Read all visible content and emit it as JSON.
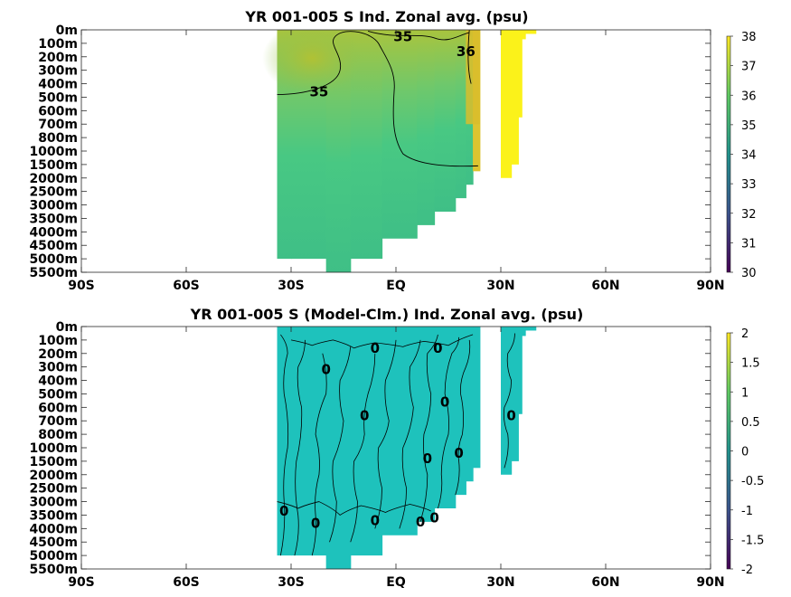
{
  "colormap": [
    "#440154",
    "#3b528b",
    "#21918c",
    "#5ec962",
    "#fde725"
  ],
  "chart_data": [
    {
      "type": "heatmap",
      "title": "YR 001-005 S Ind. Zonal avg. (psu)",
      "xlabel": "",
      "ylabel": "",
      "x_tick_labels": [
        "90S",
        "60S",
        "30S",
        "EQ",
        "30N",
        "60N",
        "90N"
      ],
      "x_ticks": [
        -90,
        -60,
        -30,
        0,
        30,
        60,
        90
      ],
      "xlim": [
        -90,
        90
      ],
      "y_tick_labels": [
        "0m",
        "100m",
        "200m",
        "300m",
        "400m",
        "500m",
        "600m",
        "700m",
        "800m",
        "1000m",
        "1500m",
        "2000m",
        "2500m",
        "3000m",
        "3500m",
        "4000m",
        "4500m",
        "5000m",
        "5500m"
      ],
      "colorbar": {
        "min": 30,
        "max": 38,
        "ticks": [
          30,
          31,
          32,
          33,
          34,
          35,
          36,
          37,
          38
        ]
      },
      "contour_labels": [
        {
          "text": "35",
          "lat": 2,
          "level": 0.5
        },
        {
          "text": "35",
          "lat": -22,
          "level": 4.6
        },
        {
          "text": "36",
          "lat": 20,
          "level": 1.6
        }
      ],
      "columns": [
        {
          "lat_min": -34,
          "lat_max": -30,
          "max_level": 17
        },
        {
          "lat_min": -30,
          "lat_max": -20,
          "max_level": 17
        },
        {
          "lat_min": -20,
          "lat_max": -13,
          "max_level": 18
        },
        {
          "lat_min": -13,
          "lat_max": -4,
          "max_level": 17
        },
        {
          "lat_min": -4,
          "lat_max": 6,
          "max_level": 15.5
        },
        {
          "lat_min": 6,
          "lat_max": 11,
          "max_level": 14.5
        },
        {
          "lat_min": 11,
          "lat_max": 17,
          "max_level": 13.5
        },
        {
          "lat_min": 17,
          "lat_max": 20,
          "max_level": 12.5
        },
        {
          "lat_min": 20,
          "lat_max": 22,
          "max_level": 11.5
        },
        {
          "lat_min": 22,
          "lat_max": 24,
          "max_level": 10.5
        },
        {
          "lat_min": 30,
          "lat_max": 33,
          "max_level": 11
        },
        {
          "lat_min": 33,
          "lat_max": 35,
          "max_level": 10
        },
        {
          "lat_min": 35,
          "lat_max": 36,
          "max_level": 6.5
        },
        {
          "lat_min": 36,
          "lat_max": 37,
          "max_level": 0.7
        },
        {
          "lat_min": 37,
          "lat_max": 40,
          "max_level": 0.3
        }
      ]
    },
    {
      "type": "heatmap",
      "title": "YR 001-005 S (Model-Clm.) Ind. Zonal avg. (psu)",
      "xlabel": "",
      "ylabel": "",
      "x_tick_labels": [
        "90S",
        "60S",
        "30S",
        "EQ",
        "30N",
        "60N",
        "90N"
      ],
      "x_ticks": [
        -90,
        -60,
        -30,
        0,
        30,
        60,
        90
      ],
      "xlim": [
        -90,
        90
      ],
      "y_tick_labels": [
        "0m",
        "100m",
        "200m",
        "300m",
        "400m",
        "500m",
        "600m",
        "700m",
        "800m",
        "1000m",
        "1500m",
        "2000m",
        "2500m",
        "3000m",
        "3500m",
        "4000m",
        "4500m",
        "5000m",
        "5500m"
      ],
      "colorbar": {
        "min": -2,
        "max": 2,
        "ticks": [
          -2,
          -1.5,
          -1,
          -0.5,
          0,
          0.5,
          1,
          1.5,
          2
        ]
      },
      "contour_labels": [
        {
          "text": "0",
          "lat": -6,
          "level": 1.6
        },
        {
          "text": "0",
          "lat": -20,
          "level": 3.2
        },
        {
          "text": "0",
          "lat": 12,
          "level": 1.6
        },
        {
          "text": "0",
          "lat": 14,
          "level": 5.6
        },
        {
          "text": "0",
          "lat": -9,
          "level": 6.6
        },
        {
          "text": "0",
          "lat": 33,
          "level": 6.6
        },
        {
          "text": "0",
          "lat": 18,
          "level": 9.4
        },
        {
          "text": "0",
          "lat": 9,
          "level": 9.8
        },
        {
          "text": "0",
          "lat": -32,
          "level": 13.7
        },
        {
          "text": "0",
          "lat": -23,
          "level": 14.6
        },
        {
          "text": "0",
          "lat": -6,
          "level": 14.4
        },
        {
          "text": "0",
          "lat": 7,
          "level": 14.5
        },
        {
          "text": "0",
          "lat": 11,
          "level": 14.2
        }
      ],
      "columns": [
        {
          "lat_min": -34,
          "lat_max": -30,
          "max_level": 17
        },
        {
          "lat_min": -30,
          "lat_max": -20,
          "max_level": 17
        },
        {
          "lat_min": -20,
          "lat_max": -13,
          "max_level": 18
        },
        {
          "lat_min": -13,
          "lat_max": -4,
          "max_level": 17
        },
        {
          "lat_min": -4,
          "lat_max": 6,
          "max_level": 15.5
        },
        {
          "lat_min": 6,
          "lat_max": 11,
          "max_level": 14.5
        },
        {
          "lat_min": 11,
          "lat_max": 17,
          "max_level": 13.5
        },
        {
          "lat_min": 17,
          "lat_max": 20,
          "max_level": 12.5
        },
        {
          "lat_min": 20,
          "lat_max": 22,
          "max_level": 11.5
        },
        {
          "lat_min": 22,
          "lat_max": 24,
          "max_level": 10.5
        },
        {
          "lat_min": 30,
          "lat_max": 33,
          "max_level": 11
        },
        {
          "lat_min": 33,
          "lat_max": 35,
          "max_level": 10
        },
        {
          "lat_min": 35,
          "lat_max": 36,
          "max_level": 6.5
        },
        {
          "lat_min": 36,
          "lat_max": 37,
          "max_level": 0.7
        },
        {
          "lat_min": 37,
          "lat_max": 40,
          "max_level": 0.3
        }
      ]
    }
  ]
}
